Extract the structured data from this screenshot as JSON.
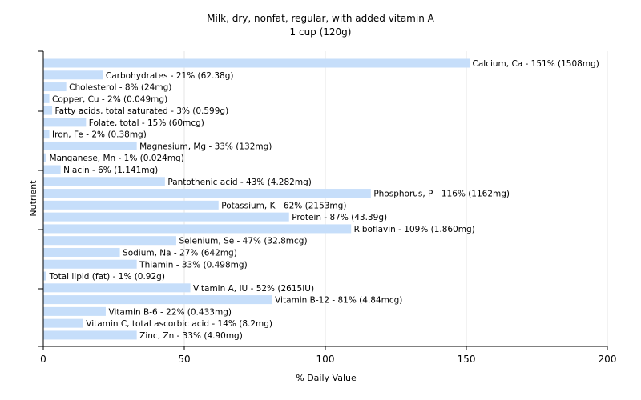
{
  "chart_data": {
    "type": "bar",
    "orientation": "horizontal",
    "title": "Milk, dry, nonfat, regular, with added vitamin A",
    "subtitle": "1 cup (120g)",
    "xlabel": "% Daily Value",
    "ylabel": "Nutrient",
    "xlim": [
      0,
      200
    ],
    "xticks": [
      0,
      50,
      100,
      150,
      200
    ],
    "grid": true,
    "bar_color": "#c6defa",
    "grid_color": "#e6e6e6",
    "categories": [
      "Calcium, Ca",
      "Carbohydrates",
      "Cholesterol",
      "Copper, Cu",
      "Fatty acids, total saturated",
      "Folate, total",
      "Iron, Fe",
      "Magnesium, Mg",
      "Manganese, Mn",
      "Niacin",
      "Pantothenic acid",
      "Phosphorus, P",
      "Potassium, K",
      "Protein",
      "Riboflavin",
      "Selenium, Se",
      "Sodium, Na",
      "Thiamin",
      "Total lipid (fat)",
      "Vitamin A, IU",
      "Vitamin B-12",
      "Vitamin B-6",
      "Vitamin C, total ascorbic acid",
      "Zinc, Zn"
    ],
    "values": [
      151,
      21,
      8,
      2,
      3,
      15,
      2,
      33,
      1,
      6,
      43,
      116,
      62,
      87,
      109,
      47,
      27,
      33,
      1,
      52,
      81,
      22,
      14,
      33
    ],
    "labels": [
      "Calcium, Ca - 151% (1508mg)",
      "Carbohydrates - 21% (62.38g)",
      "Cholesterol - 8% (24mg)",
      "Copper, Cu - 2% (0.049mg)",
      "Fatty acids, total saturated - 3% (0.599g)",
      "Folate, total - 15% (60mcg)",
      "Iron, Fe - 2% (0.38mg)",
      "Magnesium, Mg - 33% (132mg)",
      "Manganese, Mn - 1% (0.024mg)",
      "Niacin - 6% (1.141mg)",
      "Pantothenic acid - 43% (4.282mg)",
      "Phosphorus, P - 116% (1162mg)",
      "Potassium, K - 62% (2153mg)",
      "Protein - 87% (43.39g)",
      "Riboflavin - 109% (1.860mg)",
      "Selenium, Se - 47% (32.8mcg)",
      "Sodium, Na - 27% (642mg)",
      "Thiamin - 33% (0.498mg)",
      "Total lipid (fat) - 1% (0.92g)",
      "Vitamin A, IU - 52% (2615IU)",
      "Vitamin B-12 - 81% (4.84mcg)",
      "Vitamin B-6 - 22% (0.433mg)",
      "Vitamin C, total ascorbic acid - 14% (8.2mg)",
      "Zinc, Zn - 33% (4.90mg)"
    ]
  }
}
